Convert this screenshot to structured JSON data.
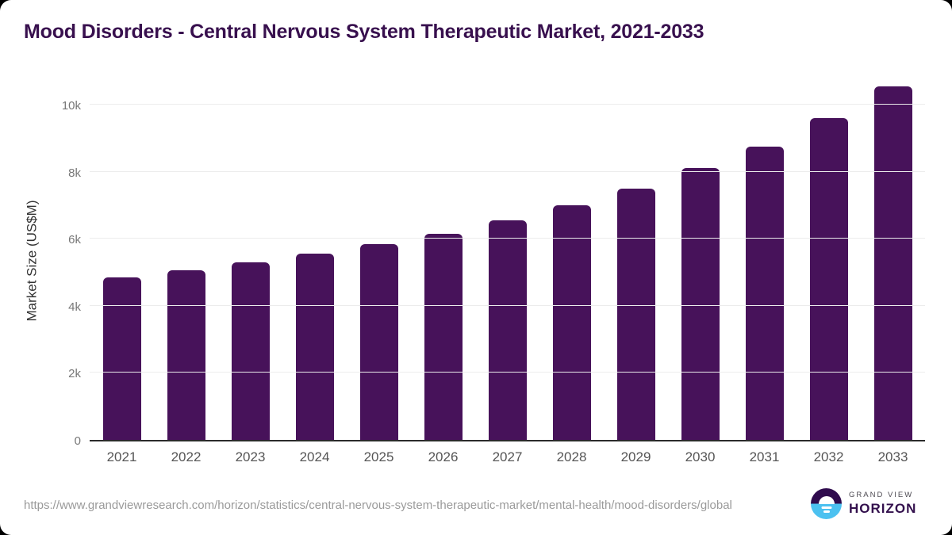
{
  "page": {
    "title": "Mood Disorders - Central Nervous System Therapeutic Market, 2021-2033"
  },
  "chart_data": {
    "type": "bar",
    "title": "Mood Disorders - Central Nervous System Therapeutic Market, 2021-2033",
    "categories": [
      "2021",
      "2022",
      "2023",
      "2024",
      "2025",
      "2026",
      "2027",
      "2028",
      "2029",
      "2030",
      "2031",
      "2032",
      "2033"
    ],
    "values": [
      4850,
      5050,
      5300,
      5550,
      5850,
      6150,
      6550,
      7000,
      7500,
      8100,
      8750,
      9600,
      10550
    ],
    "xlabel": "",
    "ylabel": "Market Size (US$M)",
    "ylim": [
      0,
      10800
    ],
    "yticks": [
      {
        "label": "0",
        "value": 0
      },
      {
        "label": "2k",
        "value": 2000
      },
      {
        "label": "4k",
        "value": 4000
      },
      {
        "label": "6k",
        "value": 6000
      },
      {
        "label": "8k",
        "value": 8000
      },
      {
        "label": "10k",
        "value": 10000
      }
    ],
    "grid": true,
    "legend": false,
    "bar_color": "#47125a"
  },
  "footer": {
    "source_url": "https://www.grandviewresearch.com/horizon/statistics/central-nervous-system-therapeutic-market/mental-health/mood-disorders/global",
    "logo": {
      "icon": "horizon-sun-icon",
      "line1": "GRAND VIEW",
      "line2": "HORIZON"
    }
  },
  "colors": {
    "bar": "#47125a",
    "title": "#38104e",
    "axis_line": "#2b2b2b",
    "gridline": "#ececec",
    "ytick_text": "#777777",
    "xtick_text": "#555555",
    "url_text": "#9a9a9a",
    "logo_purple": "#2f0b4d",
    "logo_blue": "#4cc1f0"
  }
}
